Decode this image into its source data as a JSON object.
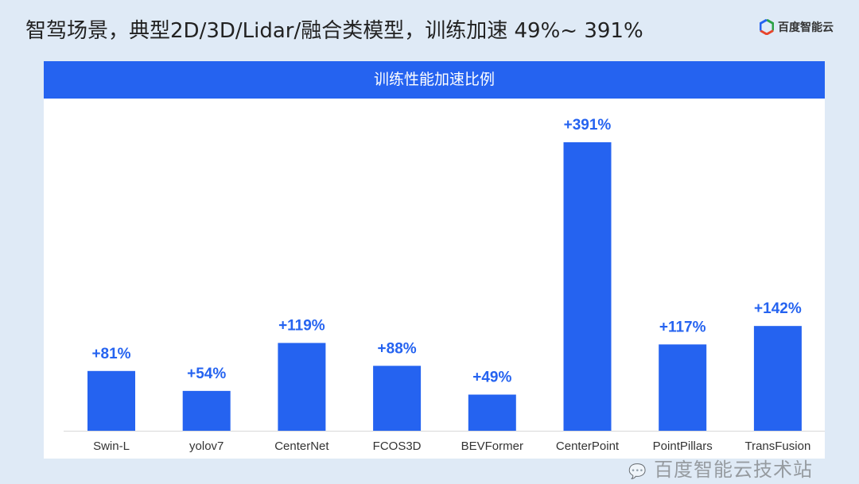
{
  "title": "智驾场景，典型2D/3D/Lidar/融合类模型，训练加速 49%~ 391%",
  "logo": {
    "text": "百度智能云",
    "colors": [
      "#2ba245",
      "#2563f0",
      "#e8452c"
    ]
  },
  "watermark": "百度智能云技术站",
  "chart_data": {
    "type": "bar",
    "title": "训练性能加速比例",
    "categories": [
      "Swin-L",
      "yolov7",
      "CenterNet",
      "FCOS3D",
      "BEVFormer",
      "CenterPoint",
      "PointPillars",
      "TransFusion"
    ],
    "values": [
      81,
      54,
      119,
      88,
      49,
      391,
      117,
      142
    ],
    "labels": [
      "+81%",
      "+54%",
      "+119%",
      "+88%",
      "+49%",
      "+391%",
      "+117%",
      "+142%"
    ],
    "bar_color": "#2563f0",
    "ylim": [
      0,
      391
    ],
    "grid": false
  }
}
